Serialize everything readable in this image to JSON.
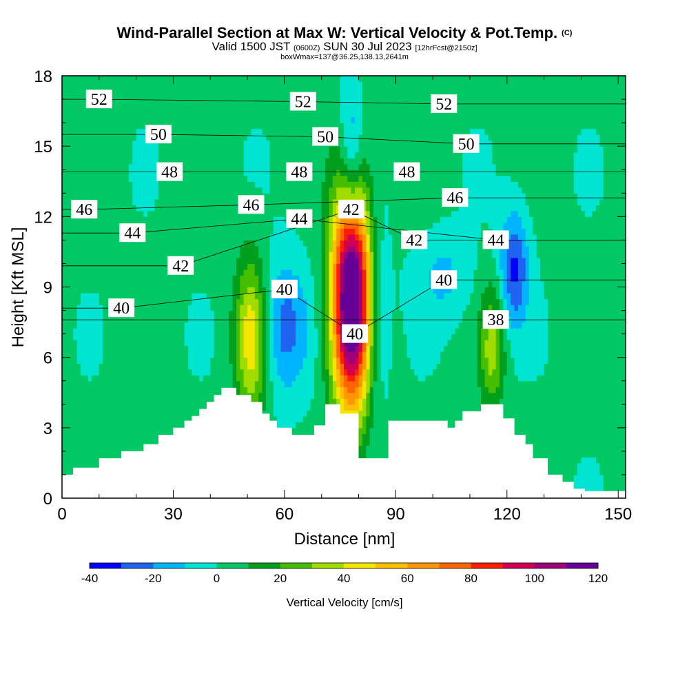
{
  "title": {
    "main": "Wind-Parallel Section at Max W: Vertical Velocity & Pot.Temp.",
    "copyright": "(C)",
    "valid_prefix": "Valid 1500 JST",
    "valid_utc": "(0600Z)",
    "valid_date": "SUN 30 Jul 2023",
    "forecast": "[12hrFcst@2150z]",
    "boxmax": "boxWmax=137@36.25,138.13,2641m"
  },
  "chart_data": {
    "type": "heatmap",
    "xlabel": "Distance [nm]",
    "ylabel": "Height [Kft MSL]",
    "xlim": [
      0,
      152
    ],
    "ylim": [
      0,
      18
    ],
    "x_ticks": [
      0,
      30,
      60,
      90,
      120,
      150
    ],
    "y_ticks": [
      0,
      3,
      6,
      9,
      12,
      15,
      18
    ],
    "colorbar": {
      "label": "Vertical Velocity [cm/s]",
      "tick_values": [
        -40,
        -20,
        0,
        20,
        40,
        60,
        80,
        100,
        120
      ],
      "tick_labels": [
        "-40",
        "-20",
        "0",
        "20",
        "40",
        "60",
        "80",
        "100",
        "120"
      ],
      "levels": [
        -40,
        -30,
        -20,
        -10,
        0,
        10,
        20,
        30,
        40,
        50,
        60,
        70,
        80,
        90,
        100,
        110,
        120
      ],
      "colors": [
        "#0000ff",
        "#1e64f0",
        "#00b4ff",
        "#00e4d2",
        "#00c864",
        "#00a01e",
        "#46be00",
        "#a0dc00",
        "#f5e600",
        "#ffbe00",
        "#ff9600",
        "#ff6400",
        "#ff1e00",
        "#d20050",
        "#a00078",
        "#640096"
      ]
    },
    "terrain_profile": {
      "x": [
        0,
        3,
        3,
        10,
        10,
        16,
        16,
        22,
        22,
        26,
        26,
        30,
        30,
        33,
        33,
        35,
        35,
        37,
        37,
        39,
        39,
        41,
        41,
        43,
        43,
        47,
        47,
        51,
        51,
        54,
        54,
        56,
        56,
        58,
        58,
        62,
        62,
        68,
        68,
        71,
        71,
        75,
        75,
        80,
        80,
        84,
        84,
        88,
        88,
        94,
        94,
        104,
        104,
        106,
        106,
        108,
        108,
        113,
        113,
        119,
        119,
        122,
        122,
        125,
        125,
        127,
        127,
        131,
        131,
        135,
        135,
        138,
        138,
        141,
        141,
        152
      ],
      "y": [
        1,
        1,
        1.3,
        1.3,
        1.7,
        1.7,
        2,
        2,
        2.3,
        2.3,
        2.7,
        2.7,
        3,
        3,
        3.3,
        3.3,
        3.5,
        3.5,
        3.8,
        3.8,
        4.1,
        4.1,
        4.4,
        4.4,
        4.7,
        4.7,
        4.4,
        4.4,
        4.1,
        4.1,
        3.6,
        3.6,
        3.3,
        3.3,
        3,
        3,
        2.7,
        2.7,
        3.1,
        3.1,
        4,
        4,
        3.6,
        3.6,
        1.7,
        1.7,
        1.7,
        1.7,
        3.3,
        3.3,
        3.3,
        3.3,
        3,
        3,
        3.3,
        3.3,
        3.7,
        3.7,
        4,
        4,
        3.4,
        3.4,
        2.7,
        2.7,
        2.3,
        2.3,
        1.7,
        1.7,
        1,
        1,
        0.7,
        0.7,
        0.4,
        0.4,
        0.3,
        0.3
      ]
    },
    "w_features": [
      {
        "x": 78,
        "y": 8.5,
        "rx": 5.5,
        "ry": 5.0,
        "value": 137
      },
      {
        "x": 51,
        "y": 6.8,
        "rx": 4.5,
        "ry": 3.5,
        "value": 45
      },
      {
        "x": 116,
        "y": 6.4,
        "rx": 3.5,
        "ry": 2.6,
        "value": 32
      },
      {
        "x": 60,
        "y": 7.3,
        "rx": 6.5,
        "ry": 3.0,
        "value": -26
      },
      {
        "x": 85,
        "y": 8.0,
        "rx": 3.5,
        "ry": 4.5,
        "value": -18
      },
      {
        "x": 78,
        "y": 14.5,
        "rx": 3.0,
        "ry": 3.5,
        "value": -28
      },
      {
        "x": 122,
        "y": 9.8,
        "rx": 4.0,
        "ry": 2.6,
        "value": -34
      },
      {
        "x": 103,
        "y": 9.5,
        "rx": 8.0,
        "ry": 2.0,
        "value": -14
      }
    ],
    "theta_contour_labels": [
      {
        "text": "52",
        "x": 10,
        "y": 17.0
      },
      {
        "text": "52",
        "x": 65,
        "y": 16.9
      },
      {
        "text": "52",
        "x": 103,
        "y": 16.8
      },
      {
        "text": "50",
        "x": 26,
        "y": 15.5
      },
      {
        "text": "50",
        "x": 71,
        "y": 15.4
      },
      {
        "text": "50",
        "x": 109,
        "y": 15.1
      },
      {
        "text": "48",
        "x": 29,
        "y": 13.9
      },
      {
        "text": "48",
        "x": 64,
        "y": 13.9
      },
      {
        "text": "48",
        "x": 93,
        "y": 13.9
      },
      {
        "text": "46",
        "x": 6,
        "y": 12.3
      },
      {
        "text": "46",
        "x": 51,
        "y": 12.5
      },
      {
        "text": "46",
        "x": 106,
        "y": 12.8
      },
      {
        "text": "44",
        "x": 19,
        "y": 11.3
      },
      {
        "text": "44",
        "x": 64,
        "y": 11.9
      },
      {
        "text": "44",
        "x": 117,
        "y": 11.0
      },
      {
        "text": "42",
        "x": 32,
        "y": 9.9
      },
      {
        "text": "42",
        "x": 78,
        "y": 12.3
      },
      {
        "text": "42",
        "x": 95,
        "y": 11.0
      },
      {
        "text": "40",
        "x": 16,
        "y": 8.1
      },
      {
        "text": "40",
        "x": 60,
        "y": 8.9
      },
      {
        "text": "40",
        "x": 79,
        "y": 7.0
      },
      {
        "text": "40",
        "x": 103,
        "y": 9.3
      },
      {
        "text": "38",
        "x": 117,
        "y": 7.6
      }
    ]
  }
}
